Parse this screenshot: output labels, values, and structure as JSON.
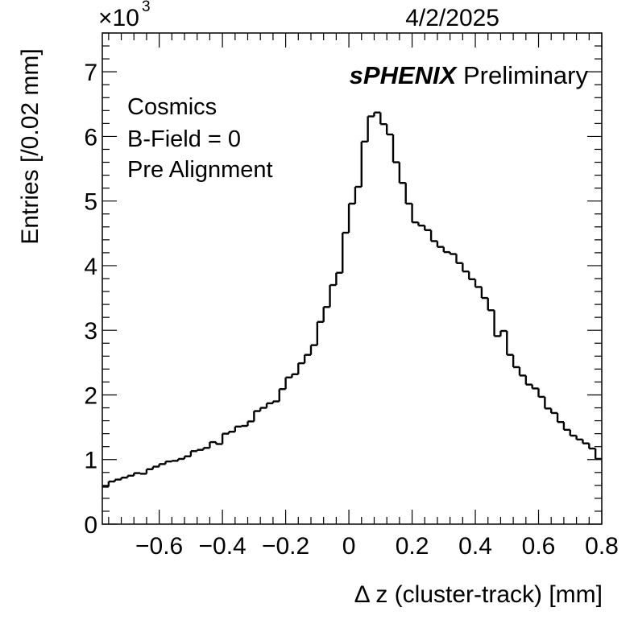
{
  "header": {
    "exponent_base": "×10",
    "exponent_power": "3",
    "date": "4/2/2025"
  },
  "branding": {
    "experiment": "sPHENIX",
    "status": "Preliminary"
  },
  "labels": {
    "line1": "Cosmics",
    "line2": "B-Field = 0",
    "line3": "Pre Alignment"
  },
  "colors": {
    "line": "#000000",
    "background": "#ffffff"
  },
  "chart_data": {
    "type": "histogram",
    "title": "",
    "xlabel": "Δ z (cluster-track) [mm]",
    "ylabel": "Entries [/0.02 mm]",
    "xlim": [
      -0.78,
      0.8
    ],
    "ylim": [
      0,
      7.6
    ],
    "y_multiplier": "×10^3",
    "bin_width": 0.02,
    "x_ticks": [
      "−0.6",
      "−0.4",
      "−0.2",
      "0",
      "0.2",
      "0.4",
      "0.6",
      "0.8"
    ],
    "x_tick_values": [
      -0.6,
      -0.4,
      -0.2,
      0,
      0.2,
      0.4,
      0.6,
      0.8
    ],
    "y_ticks": [
      "0",
      "1",
      "2",
      "3",
      "4",
      "5",
      "6",
      "7"
    ],
    "y_tick_values": [
      0,
      1,
      2,
      3,
      4,
      5,
      6,
      7
    ],
    "bin_low_edges": [
      -0.78,
      -0.76,
      -0.74,
      -0.72,
      -0.7,
      -0.68,
      -0.66,
      -0.64,
      -0.62,
      -0.6,
      -0.58,
      -0.56,
      -0.54,
      -0.52,
      -0.5,
      -0.48,
      -0.46,
      -0.44,
      -0.42,
      -0.4,
      -0.38,
      -0.36,
      -0.34,
      -0.32,
      -0.3,
      -0.28,
      -0.26,
      -0.24,
      -0.22,
      -0.2,
      -0.18,
      -0.16,
      -0.14,
      -0.12,
      -0.1,
      -0.08,
      -0.06,
      -0.04,
      -0.02,
      0.0,
      0.02,
      0.04,
      0.06,
      0.08,
      0.1,
      0.12,
      0.14,
      0.16,
      0.18,
      0.2,
      0.22,
      0.24,
      0.26,
      0.28,
      0.3,
      0.32,
      0.34,
      0.36,
      0.38,
      0.4,
      0.42,
      0.44,
      0.46,
      0.48,
      0.5,
      0.52,
      0.54,
      0.56,
      0.58,
      0.6,
      0.62,
      0.64,
      0.66,
      0.68,
      0.7,
      0.72,
      0.74,
      0.76,
      0.78
    ],
    "values": [
      0.58,
      0.66,
      0.69,
      0.72,
      0.75,
      0.79,
      0.78,
      0.85,
      0.89,
      0.93,
      0.97,
      0.98,
      1.01,
      1.05,
      1.13,
      1.15,
      1.18,
      1.27,
      1.24,
      1.4,
      1.43,
      1.51,
      1.52,
      1.59,
      1.75,
      1.8,
      1.87,
      1.9,
      2.09,
      2.27,
      2.32,
      2.49,
      2.62,
      2.77,
      3.13,
      3.36,
      3.7,
      3.89,
      4.51,
      4.96,
      5.22,
      5.92,
      6.31,
      6.37,
      6.19,
      6.03,
      5.6,
      5.28,
      4.96,
      4.67,
      4.62,
      4.55,
      4.38,
      4.29,
      4.21,
      4.18,
      4.04,
      3.91,
      3.79,
      3.67,
      3.5,
      3.31,
      2.91,
      2.99,
      2.62,
      2.43,
      2.3,
      2.16,
      2.1,
      1.97,
      1.79,
      1.72,
      1.58,
      1.46,
      1.37,
      1.31,
      1.25,
      1.17,
      1.01
    ]
  }
}
